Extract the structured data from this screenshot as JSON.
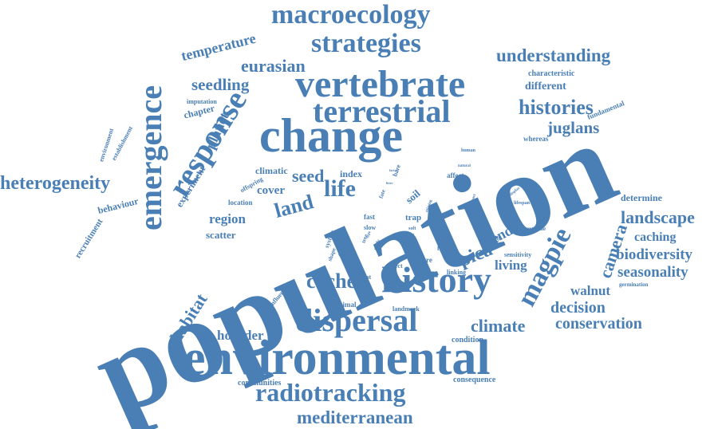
{
  "color": "#4a7fb5",
  "words": [
    {
      "text": "population",
      "weight": 100
    },
    {
      "text": "environmental",
      "weight": 60
    },
    {
      "text": "change",
      "weight": 58
    },
    {
      "text": "history",
      "weight": 46
    },
    {
      "text": "vertebrate",
      "weight": 46
    },
    {
      "text": "terrestrial",
      "weight": 42
    },
    {
      "text": "emergence",
      "weight": 40
    },
    {
      "text": "dispersal",
      "weight": 40
    },
    {
      "text": "response",
      "weight": 38
    },
    {
      "text": "macroecology",
      "weight": 34
    },
    {
      "text": "strategies",
      "weight": 34
    },
    {
      "text": "radiotracking",
      "weight": 32
    },
    {
      "text": "magpie",
      "weight": 30
    },
    {
      "text": "heterogeneity",
      "weight": 24
    },
    {
      "text": "mediterranean",
      "weight": 24
    },
    {
      "text": "histories",
      "weight": 24
    },
    {
      "text": "understanding",
      "weight": 22
    },
    {
      "text": "life",
      "weight": 28
    },
    {
      "text": "land",
      "weight": 24
    },
    {
      "text": "cache",
      "weight": 24
    },
    {
      "text": "pica",
      "weight": 24
    },
    {
      "text": "landscape",
      "weight": 22
    },
    {
      "text": "habitat",
      "weight": 22
    },
    {
      "text": "climate",
      "weight": 22
    },
    {
      "text": "camera",
      "weight": 22
    },
    {
      "text": "eurasian",
      "weight": 20
    },
    {
      "text": "seedling",
      "weight": 20
    },
    {
      "text": "juglans",
      "weight": 20
    },
    {
      "text": "temperature",
      "weight": 18
    },
    {
      "text": "seed",
      "weight": 20
    },
    {
      "text": "planet",
      "weight": 18
    },
    {
      "text": "decision",
      "weight": 18
    },
    {
      "text": "conservation",
      "weight": 18
    },
    {
      "text": "biodiversity",
      "weight": 18
    },
    {
      "text": "seasonality",
      "weight": 18
    },
    {
      "text": "region",
      "weight": 16
    },
    {
      "text": "walnut",
      "weight": 16
    },
    {
      "text": "trend",
      "weight": 18
    },
    {
      "text": "living",
      "weight": 16
    },
    {
      "text": "hoarder",
      "weight": 16
    },
    {
      "text": "caching",
      "weight": 15
    },
    {
      "text": "different",
      "weight": 14
    },
    {
      "text": "cover",
      "weight": 14
    },
    {
      "text": "determine",
      "weight": 12
    },
    {
      "text": "experiment",
      "weight": 12
    },
    {
      "text": "chapter",
      "weight": 12
    },
    {
      "text": "climatic",
      "weight": 12
    },
    {
      "text": "scatter",
      "weight": 12
    },
    {
      "text": "behaviour",
      "weight": 12
    },
    {
      "text": "recruitment",
      "weight": 11
    },
    {
      "text": "communities",
      "weight": 10
    },
    {
      "text": "consequence",
      "weight": 10
    },
    {
      "text": "condition",
      "weight": 10
    },
    {
      "text": "index",
      "weight": 11
    },
    {
      "text": "soil",
      "weight": 11
    },
    {
      "text": "characteristic",
      "weight": 10
    },
    {
      "text": "fundamental",
      "weight": 9
    },
    {
      "text": "whereas",
      "weight": 9
    },
    {
      "text": "imputation",
      "weight": 8
    },
    {
      "text": "environment",
      "weight": 8
    },
    {
      "text": "establishment",
      "weight": 8
    },
    {
      "text": "location",
      "weight": 9
    },
    {
      "text": "offspring",
      "weight": 8
    },
    {
      "text": "fast",
      "weight": 9
    },
    {
      "text": "slow",
      "weight": 8
    },
    {
      "text": "trap",
      "weight": 11
    },
    {
      "text": "affect",
      "weight": 9
    },
    {
      "text": "bare",
      "weight": 8
    },
    {
      "text": "fate",
      "weight": 7
    },
    {
      "text": "tree",
      "weight": 7
    },
    {
      "text": "system",
      "weight": 8
    },
    {
      "text": "shape",
      "weight": 7
    },
    {
      "text": "influence",
      "weight": 8
    },
    {
      "text": "recent",
      "weight": 8
    },
    {
      "text": "animal",
      "weight": 9
    },
    {
      "text": "landmark",
      "weight": 8
    },
    {
      "text": "effect",
      "weight": 8
    },
    {
      "text": "linking",
      "weight": 8
    },
    {
      "text": "more",
      "weight": 9
    },
    {
      "text": "future",
      "weight": 8
    },
    {
      "text": "sensitivity",
      "weight": 8
    },
    {
      "text": "result",
      "weight": 7
    },
    {
      "text": "extreme",
      "weight": 7
    },
    {
      "text": "germination",
      "weight": 7
    },
    {
      "text": "human",
      "weight": 6
    },
    {
      "text": "lifespan",
      "weight": 6
    },
    {
      "text": "display",
      "weight": 5
    },
    {
      "text": "impact",
      "weight": 5
    },
    {
      "text": "natural",
      "weight": 5
    },
    {
      "text": "missing",
      "weight": 5
    },
    {
      "text": "study",
      "weight": 6
    },
    {
      "text": "type",
      "weight": 5
    },
    {
      "text": "soft",
      "weight": 6
    },
    {
      "text": "visual",
      "weight": 5
    },
    {
      "text": "factor",
      "weight": 4
    },
    {
      "text": "litter",
      "weight": 4
    },
    {
      "text": "better",
      "weight": 4
    },
    {
      "text": "root",
      "weight": 4
    }
  ]
}
